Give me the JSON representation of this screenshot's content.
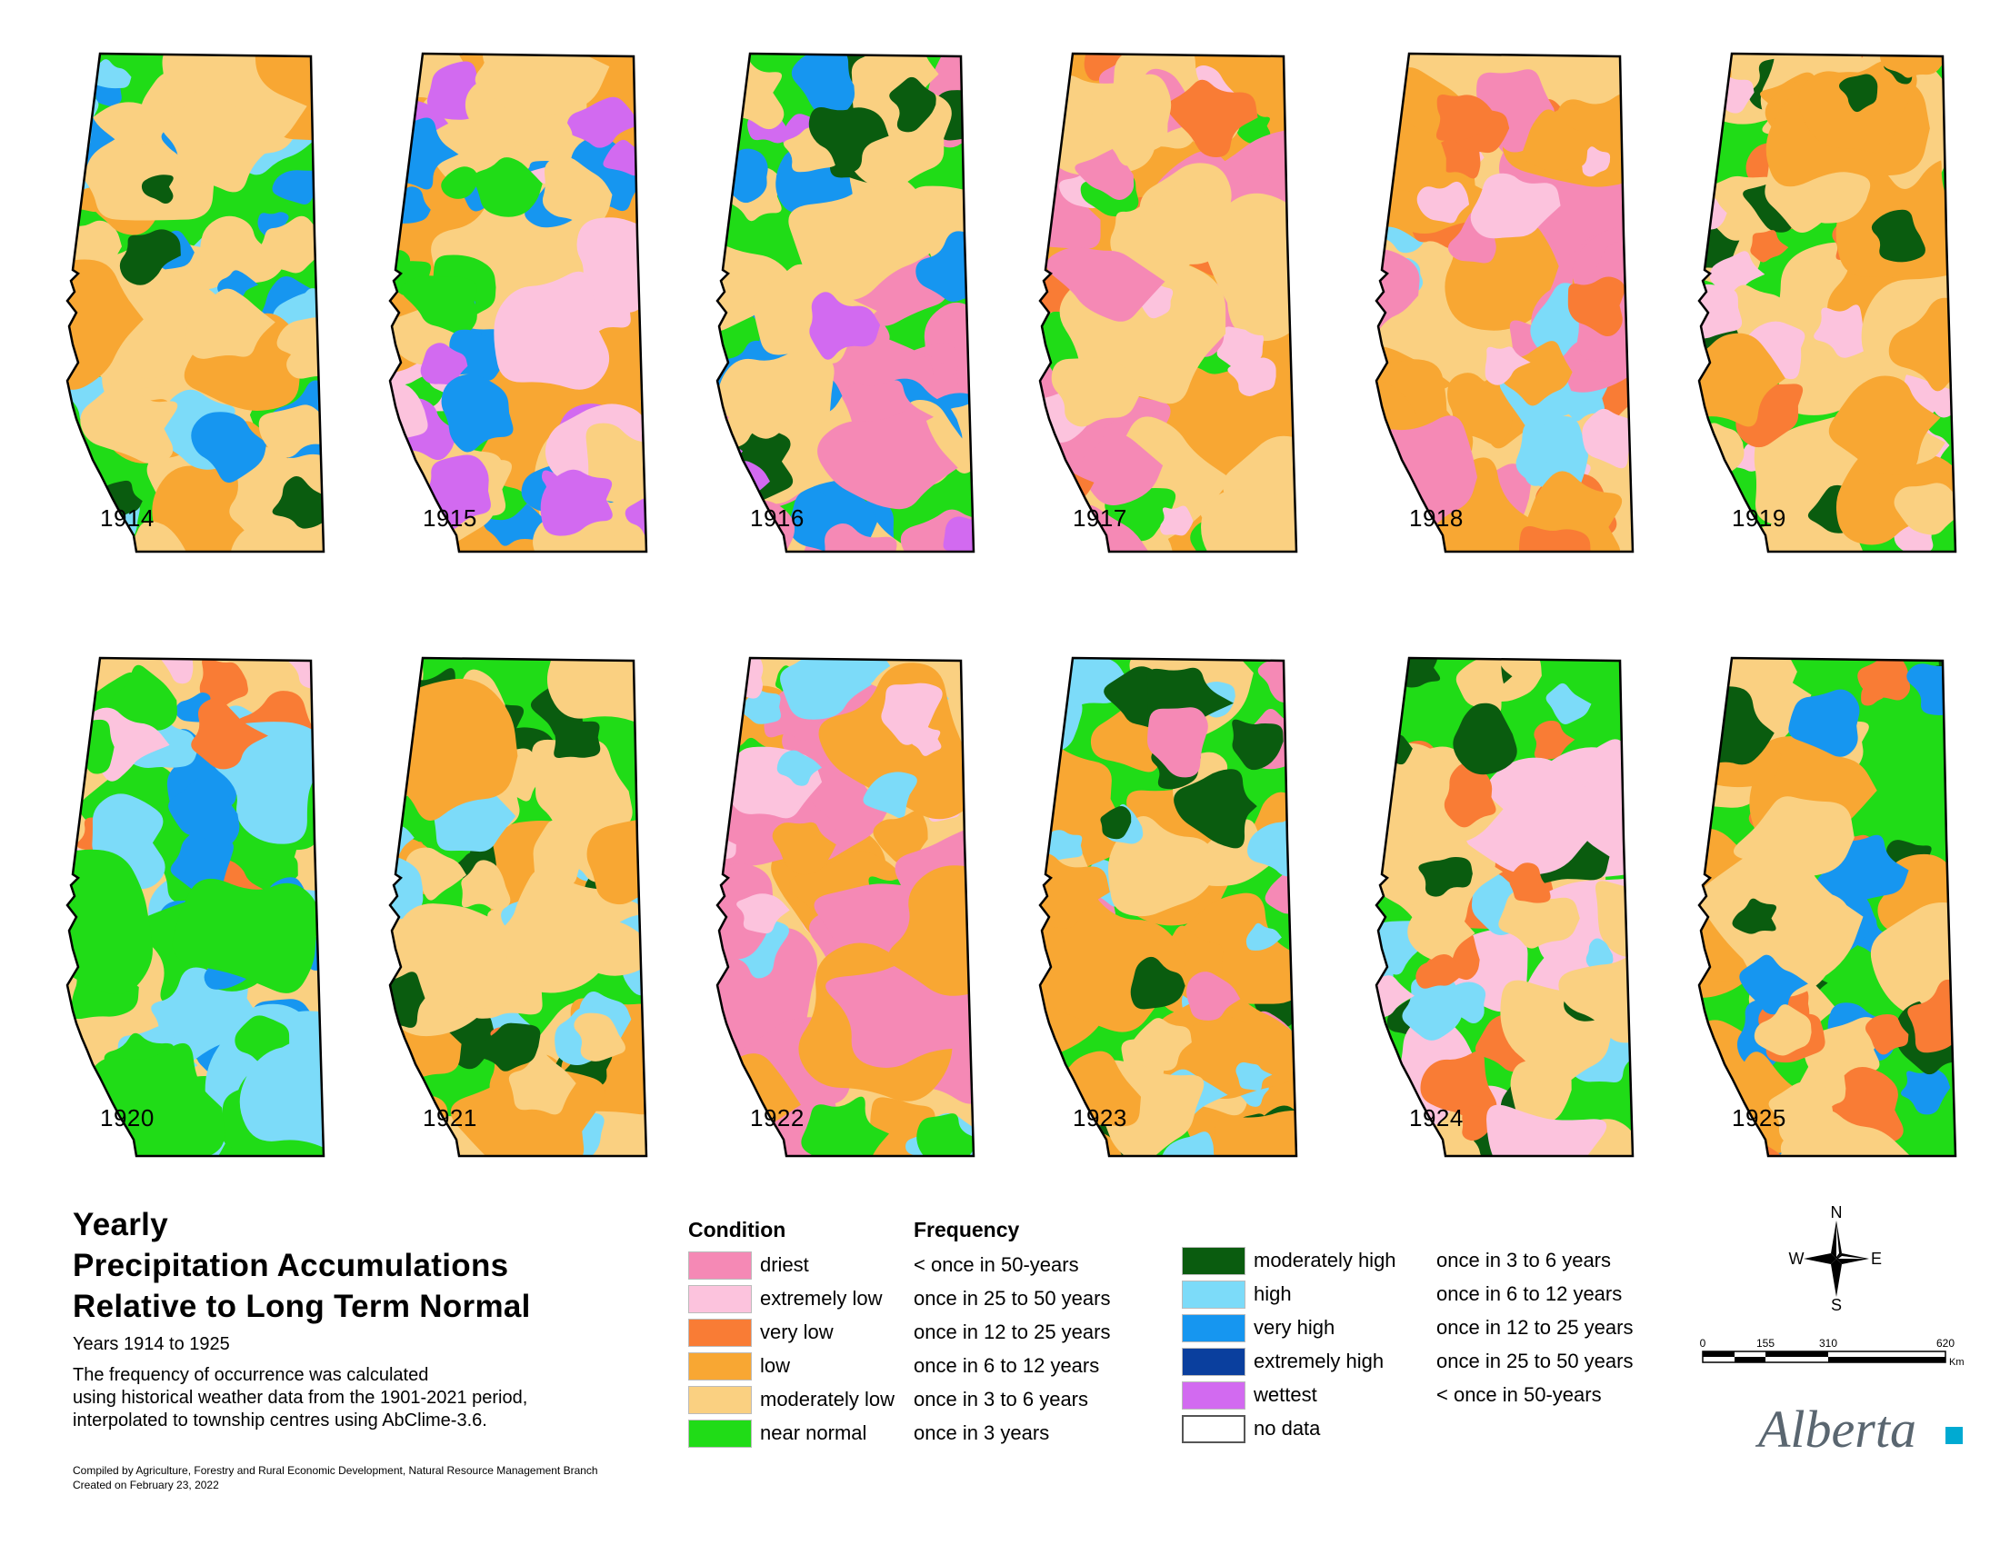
{
  "title": {
    "lines": [
      "Yearly",
      "Precipitation Accumulations",
      "Relative to Long Term Normal"
    ],
    "years": "Years 1914 to 1925",
    "description": [
      "The frequency of occurrence was calculated",
      "using historical weather data from the 1901-2021 period,",
      "interpolated to township centres using AbClime-3.6."
    ]
  },
  "credits": [
    "Compiled by Agriculture, Forestry and Rural Economic Development, Natural Resource Management Branch",
    "Created on February 23, 2022"
  ],
  "maps": [
    {
      "year": "1914",
      "palette": [
        "near_normal",
        "moderately_low",
        "low",
        "very_high",
        "moderately_high",
        "high"
      ]
    },
    {
      "year": "1915",
      "palette": [
        "low",
        "moderately_low",
        "extremely_low",
        "near_normal",
        "very_high",
        "wettest"
      ]
    },
    {
      "year": "1916",
      "palette": [
        "near_normal",
        "moderately_low",
        "driest",
        "moderately_high",
        "very_high",
        "wettest"
      ]
    },
    {
      "year": "1917",
      "palette": [
        "low",
        "moderately_low",
        "driest",
        "extremely_low",
        "near_normal",
        "very_low"
      ]
    },
    {
      "year": "1918",
      "palette": [
        "moderately_low",
        "low",
        "driest",
        "extremely_low",
        "very_low",
        "high"
      ]
    },
    {
      "year": "1919",
      "palette": [
        "near_normal",
        "moderately_low",
        "low",
        "very_low",
        "moderately_high",
        "extremely_low"
      ]
    },
    {
      "year": "1920",
      "palette": [
        "moderately_low",
        "near_normal",
        "high",
        "very_high",
        "very_low",
        "extremely_low"
      ]
    },
    {
      "year": "1921",
      "palette": [
        "near_normal",
        "moderately_low",
        "low",
        "moderately_high",
        "very_low",
        "high"
      ]
    },
    {
      "year": "1922",
      "palette": [
        "moderately_low",
        "low",
        "driest",
        "extremely_low",
        "near_normal",
        "high"
      ]
    },
    {
      "year": "1923",
      "palette": [
        "near_normal",
        "low",
        "moderately_low",
        "driest",
        "moderately_high",
        "high"
      ]
    },
    {
      "year": "1924",
      "palette": [
        "near_normal",
        "moderately_low",
        "extremely_low",
        "very_low",
        "high",
        "moderately_high"
      ]
    },
    {
      "year": "1925",
      "palette": [
        "near_normal",
        "moderately_low",
        "low",
        "moderately_high",
        "very_low",
        "very_high"
      ]
    }
  ],
  "legend": {
    "condition_header": "Condition",
    "frequency_header": "Frequency",
    "left": [
      {
        "key": "driest",
        "condition": "driest",
        "frequency": "< once in 50-years",
        "color": "#f589b5"
      },
      {
        "key": "extremely_low",
        "condition": "extremely low",
        "frequency": "once in 25 to 50 years",
        "color": "#fcc3dd"
      },
      {
        "key": "very_low",
        "condition": "very low",
        "frequency": "once in 12 to 25 years",
        "color": "#f97c35"
      },
      {
        "key": "low",
        "condition": "low",
        "frequency": "once in 6 to 12 years",
        "color": "#f8a733"
      },
      {
        "key": "moderately_low",
        "condition": "moderately low",
        "frequency": "once in 3 to 6 years",
        "color": "#fad081"
      },
      {
        "key": "near_normal",
        "condition": "near normal",
        "frequency": "once in 3 years",
        "color": "#20dc17"
      }
    ],
    "right": [
      {
        "key": "moderately_high",
        "condition": "moderately high",
        "frequency": "once in 3 to 6 years",
        "color": "#0a5c0f"
      },
      {
        "key": "high",
        "condition": "high",
        "frequency": "once in 6 to 12 years",
        "color": "#7cdbf9"
      },
      {
        "key": "very_high",
        "condition": "very high",
        "frequency": "once in 12 to 25 years",
        "color": "#1696f0"
      },
      {
        "key": "extremely_high",
        "condition": "extremely high",
        "frequency": "once in 25 to 50 years",
        "color": "#0a3f9e"
      },
      {
        "key": "wettest",
        "condition": "wettest",
        "frequency": "< once in 50-years",
        "color": "#d26af0"
      },
      {
        "key": "no_data",
        "condition": "no data",
        "frequency": "",
        "color": "#ffffff"
      }
    ]
  },
  "compass": {
    "n": "N",
    "s": "S",
    "e": "E",
    "w": "W"
  },
  "scale": {
    "ticks": [
      "0",
      "155",
      "310",
      "620"
    ],
    "unit": "Km"
  },
  "logo": {
    "text": "Alberta",
    "accent_color": "#00aad2"
  }
}
